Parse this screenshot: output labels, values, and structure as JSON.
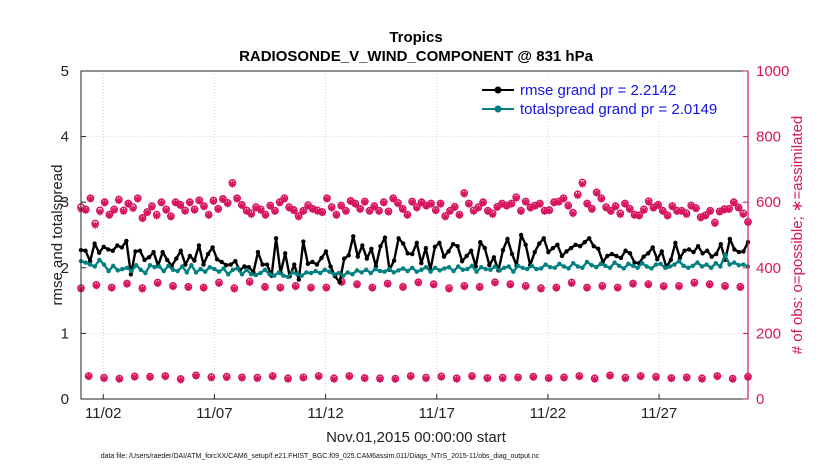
{
  "chart_data": {
    "type": "line",
    "title": "Tropics",
    "subtitle": "RADIOSONDE_V_WIND_COMPONENT @ 831 hPa",
    "xlabel": "Nov.01,2015 00:00:00 start",
    "ylabel_left": "rmse and totalspread",
    "ylabel_right": "# of obs: o=possible; ∗=assimilated",
    "x_ticks": [
      {
        "label": "11/02",
        "x": 2
      },
      {
        "label": "11/07",
        "x": 7
      },
      {
        "label": "11/12",
        "x": 12
      },
      {
        "label": "11/17",
        "x": 17
      },
      {
        "label": "11/22",
        "x": 22
      },
      {
        "label": "11/27",
        "x": 27
      }
    ],
    "xlim": [
      1,
      31
    ],
    "ylim_left": [
      0,
      5
    ],
    "yticks_left": [
      "0",
      "1",
      "2",
      "3",
      "4",
      "5"
    ],
    "ylim_right": [
      0,
      1000
    ],
    "yticks_right": [
      "0",
      "200",
      "400",
      "600",
      "800",
      "1000"
    ],
    "grid": true,
    "legend_position": "top-right",
    "colors": {
      "rmse": "#000000",
      "totalspread": "#008080",
      "obs": "#d6145f",
      "legend_text": "#1414e6"
    },
    "series": [
      {
        "name": "rmse grand pr = 2.2142",
        "values": [
          2.27,
          2.26,
          2.1,
          2.37,
          2.23,
          2.32,
          2.28,
          2.26,
          2.34,
          2.31,
          2.41,
          1.9,
          2.25,
          2.26,
          2.12,
          2.16,
          2.24,
          2.03,
          2.24,
          2.12,
          2.03,
          2.14,
          2.26,
          2.05,
          2.18,
          2.11,
          2.34,
          2.05,
          2.21,
          2.31,
          2.13,
          2.09,
          2.04,
          2.05,
          2.1,
          1.96,
          2.02,
          2.01,
          1.93,
          2.24,
          2.05,
          2.05,
          1.88,
          2.45,
          1.92,
          2.22,
          1.87,
          2.05,
          1.82,
          2.4,
          2.06,
          2.09,
          2.05,
          2.15,
          2.25,
          2.02,
          1.87,
          1.78,
          2.14,
          2.19,
          2.48,
          2.17,
          2.34,
          2.14,
          2.29,
          2.02,
          2.33,
          2.46,
          1.97,
          2.11,
          2.45,
          2.37,
          2.22,
          2.21,
          2.38,
          2.07,
          2.3,
          1.97,
          2.32,
          2.38,
          2.17,
          2.25,
          2.36,
          2.33,
          2.1,
          2.18,
          2.26,
          2.02,
          2.39,
          2.3,
          2.04,
          2.16,
          1.96,
          2.27,
          2.44,
          2.21,
          2.03,
          2.5,
          2.35,
          2.04,
          2.24,
          2.37,
          2.45,
          2.24,
          2.3,
          2.35,
          2.18,
          2.25,
          2.3,
          2.35,
          2.33,
          2.39,
          2.45,
          2.33,
          2.29,
          2.09,
          2.18,
          2.21,
          2.18,
          2.15,
          2.26,
          2.22,
          2.08,
          2.07,
          2.17,
          2.22,
          2.31,
          2.13,
          2.25,
          2.01,
          2.12,
          2.38,
          2.15,
          2.26,
          2.28,
          2.24,
          2.33,
          2.22,
          2.26,
          2.17,
          2.21,
          2.36,
          2.12,
          2.44,
          2.28,
          2.24,
          2.25,
          2.39
        ]
      },
      {
        "name": "totalspread grand pr = 2.0149",
        "values": [
          2.1,
          2.08,
          2.05,
          2.02,
          2.12,
          2.05,
          1.95,
          2.03,
          1.96,
          1.98,
          2.0,
          1.95,
          2.04,
          1.97,
          1.92,
          2.04,
          2.01,
          2.02,
          1.95,
          2.03,
          1.97,
          1.95,
          2.02,
          1.93,
          2.04,
          1.93,
          1.98,
          1.94,
          2.01,
          1.98,
          1.94,
          1.99,
          1.9,
          1.97,
          1.99,
          1.9,
          1.97,
          1.9,
          1.89,
          1.92,
          1.97,
          1.9,
          1.88,
          1.93,
          1.88,
          1.86,
          1.93,
          1.9,
          1.88,
          1.93,
          1.92,
          1.95,
          1.92,
          1.97,
          1.94,
          1.9,
          1.92,
          1.88,
          1.93,
          1.9,
          1.96,
          1.93,
          1.97,
          1.92,
          1.98,
          1.95,
          1.94,
          1.98,
          1.93,
          1.96,
          1.99,
          1.95,
          2.0,
          1.94,
          1.97,
          2.01,
          1.94,
          2.0,
          1.96,
          1.99,
          2.01,
          1.95,
          2.02,
          1.97,
          1.98,
          2.03,
          1.94,
          2.01,
          1.98,
          1.97,
          2.02,
          1.96,
          2.0,
          2.02,
          1.94,
          2.03,
          2.0,
          1.98,
          2.03,
          1.98,
          1.99,
          2.05,
          2.01,
          2.0,
          2.06,
          2.02,
          1.99,
          2.07,
          2.02,
          2.0,
          2.09,
          2.04,
          2.01,
          2.06,
          2.03,
          2.0,
          2.08,
          2.03,
          1.99,
          2.06,
          2.03,
          2.0,
          2.07,
          2.02,
          1.99,
          2.05,
          2.06,
          2.0,
          2.02,
          2.05,
          2.1,
          2.03,
          2.0,
          2.03,
          2.08,
          2.02,
          2.05,
          2.0,
          2.07,
          2.02,
          2.2,
          2.05,
          2.08,
          2.04,
          2.05,
          2.02
        ]
      }
    ],
    "obs_possible": [
      585,
      578,
      612,
      535,
      575,
      600,
      562,
      578,
      608,
      575,
      596,
      585,
      612,
      552,
      570,
      588,
      562,
      600,
      578,
      557,
      600,
      592,
      575,
      600,
      578,
      606,
      588,
      562,
      605,
      580,
      610,
      598,
      659,
      612,
      592,
      575,
      566,
      585,
      578,
      562,
      590,
      574,
      600,
      612,
      585,
      576,
      558,
      574,
      591,
      580,
      575,
      570,
      612,
      585,
      562,
      590,
      574,
      604,
      596,
      580,
      602,
      574,
      588,
      574,
      600,
      572,
      612,
      598,
      580,
      562,
      602,
      585,
      600,
      590,
      596,
      576,
      596,
      558,
      574,
      586,
      562,
      628,
      596,
      575,
      585,
      600,
      574,
      566,
      586,
      596,
      590,
      596,
      615,
      574,
      602,
      584,
      590,
      596,
      574,
      576,
      600,
      602,
      612,
      590,
      568,
      624,
      660,
      596,
      580,
      630,
      612,
      585,
      574,
      588,
      566,
      596,
      580,
      562,
      560,
      578,
      603,
      584,
      592,
      574,
      560,
      588,
      574,
      574,
      566,
      590,
      582,
      554,
      560,
      574,
      538,
      572,
      579,
      580,
      600,
      584,
      566,
      540
    ],
    "obs_assimilated": [
      578,
      575,
      610,
      530,
      570,
      598,
      560,
      575,
      605,
      572,
      594,
      580,
      610,
      550,
      568,
      585,
      558,
      598,
      575,
      555,
      598,
      590,
      572,
      598,
      575,
      604,
      586,
      560,
      602,
      578,
      608,
      595,
      655,
      610,
      590,
      572,
      562,
      582,
      575,
      560,
      588,
      572,
      598,
      610,
      582,
      574,
      555,
      572,
      588,
      578,
      572,
      568,
      610,
      582,
      560,
      588,
      572,
      602,
      594,
      578,
      600,
      572,
      586,
      572,
      598,
      570,
      610,
      595,
      578,
      560,
      600,
      582,
      598,
      588,
      594,
      574,
      594,
      555,
      572,
      584,
      560,
      625,
      594,
      572,
      582,
      598,
      572,
      562,
      584,
      594,
      588,
      594,
      612,
      572,
      600,
      582,
      588,
      594,
      572,
      574,
      598,
      600,
      610,
      588,
      565,
      620,
      655,
      594,
      578,
      628,
      610,
      582,
      572,
      586,
      562,
      594,
      578,
      560,
      558,
      575,
      600,
      582,
      590,
      572,
      558,
      586,
      572,
      572,
      562,
      588,
      580,
      552,
      558,
      572,
      535,
      570,
      576,
      578,
      598,
      582,
      562,
      538
    ],
    "obs_low_possible": [
      338,
      70,
      348,
      65,
      340,
      62,
      352,
      69,
      338,
      68,
      355,
      70,
      345,
      61,
      342,
      72,
      340,
      67,
      355,
      68,
      338,
      66,
      358,
      65,
      342,
      70,
      340,
      63,
      345,
      66,
      340,
      70,
      340,
      63,
      358,
      70,
      350,
      64,
      340,
      63,
      352,
      62,
      342,
      70,
      356,
      65,
      350,
      69,
      338,
      63,
      345,
      70,
      342,
      64,
      356,
      65,
      350,
      66,
      345,
      68,
      338,
      64,
      340,
      66,
      355,
      70,
      340,
      63,
      345,
      72,
      340,
      65,
      352,
      70,
      350,
      68,
      344,
      64,
      345,
      66,
      355,
      63,
      350,
      70,
      345,
      62,
      342,
      68
    ],
    "obs_low_assimilated": [
      335,
      68,
      345,
      62,
      338,
      60,
      350,
      66,
      335,
      66,
      352,
      68,
      342,
      58,
      340,
      70,
      338,
      64,
      352,
      65,
      335,
      64,
      355,
      62,
      340,
      68,
      338,
      60,
      342,
      64,
      338,
      68,
      338,
      60,
      355,
      68,
      348,
      62,
      338,
      60,
      350,
      60,
      340,
      68,
      354,
      62,
      348,
      66,
      335,
      60,
      342,
      68,
      340,
      62,
      354,
      62,
      348,
      64,
      342,
      66,
      335,
      62,
      338,
      64,
      352,
      68,
      338,
      60,
      342,
      70,
      338,
      62,
      350,
      68,
      348,
      65,
      342,
      62,
      342,
      64,
      352,
      60,
      348,
      68,
      342,
      60,
      340,
      66
    ],
    "footer": "data file: /Users/raeder/DAI/ATM_forcXX/CAM6_setup/f.e21.FHIST_BGC.f09_025.CAM6assim.011/Diags_NTrS_2015-11/obs_diag_output.nc"
  }
}
